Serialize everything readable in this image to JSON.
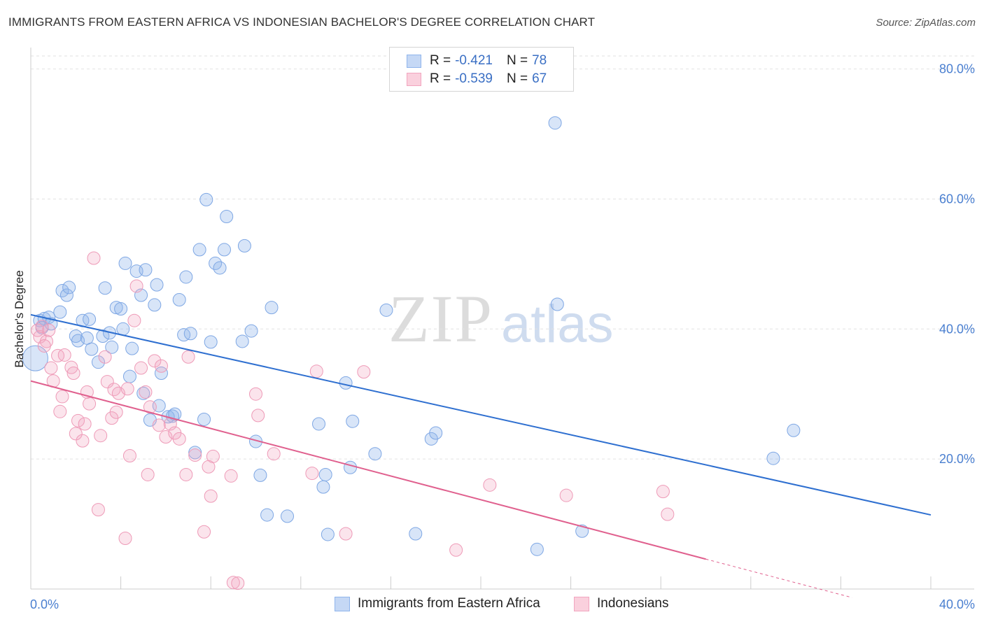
{
  "title": "IMMIGRANTS FROM EASTERN AFRICA VS INDONESIAN BACHELOR'S DEGREE CORRELATION CHART",
  "source": "Source: ZipAtlas.com",
  "watermark": {
    "zip": "ZIP",
    "atlas": "atlas"
  },
  "colors": {
    "blue": "#8fb5ec",
    "blue_line": "#2e6fd0",
    "pink": "#f2a5bf",
    "pink_line": "#e0608e",
    "tick": "#4a7fd0"
  },
  "legend": {
    "rows": [
      {
        "r_label": "R =",
        "r_value": "-0.421",
        "n_label": "N =",
        "n_value": "78"
      },
      {
        "r_label": "R =",
        "r_value": "-0.539",
        "n_label": "N =",
        "n_value": "67"
      }
    ]
  },
  "bottom_legend": [
    "Immigrants from Eastern Africa",
    "Indonesians"
  ],
  "chart_data": {
    "type": "scatter",
    "title": "IMMIGRANTS FROM EASTERN AFRICA VS INDONESIAN BACHELOR'S DEGREE CORRELATION CHART",
    "xlabel": "",
    "ylabel": "Bachelor's Degree",
    "xlim": [
      0,
      40
    ],
    "ylim": [
      0,
      82
    ],
    "x_tick_labels": [
      "0.0%",
      "40.0%"
    ],
    "y_ticks": [
      20,
      40,
      60,
      80
    ],
    "y_tick_labels": [
      "20.0%",
      "40.0%",
      "60.0%",
      "80.0%"
    ],
    "grid": true,
    "legend_position": "top-center",
    "series": [
      {
        "name": "Immigrants from Eastern Africa",
        "color": "#8fb5ec",
        "trend": {
          "x": [
            0,
            40
          ],
          "y": [
            42.2,
            11.4
          ]
        },
        "points": [
          [
            0.2,
            35.5
          ],
          [
            0.4,
            41.3
          ],
          [
            0.6,
            41.6
          ],
          [
            0.8,
            41.8
          ],
          [
            0.9,
            40.8
          ],
          [
            1.3,
            42.6
          ],
          [
            1.4,
            45.9
          ],
          [
            1.6,
            45.2
          ],
          [
            1.7,
            46.4
          ],
          [
            2.0,
            38.9
          ],
          [
            2.1,
            38.2
          ],
          [
            2.3,
            41.3
          ],
          [
            2.5,
            38.6
          ],
          [
            2.6,
            41.5
          ],
          [
            2.7,
            36.9
          ],
          [
            3.0,
            34.9
          ],
          [
            3.2,
            38.9
          ],
          [
            3.3,
            46.3
          ],
          [
            3.5,
            39.4
          ],
          [
            3.6,
            37.2
          ],
          [
            3.8,
            43.3
          ],
          [
            4.0,
            43.1
          ],
          [
            4.1,
            40.0
          ],
          [
            4.2,
            50.1
          ],
          [
            4.4,
            32.7
          ],
          [
            4.5,
            37.0
          ],
          [
            4.7,
            48.9
          ],
          [
            4.9,
            45.2
          ],
          [
            5.0,
            30.1
          ],
          [
            5.1,
            49.1
          ],
          [
            5.3,
            26.0
          ],
          [
            5.5,
            43.7
          ],
          [
            5.6,
            46.8
          ],
          [
            5.7,
            28.2
          ],
          [
            5.8,
            33.2
          ],
          [
            6.1,
            26.5
          ],
          [
            6.3,
            26.6
          ],
          [
            6.4,
            26.9
          ],
          [
            6.6,
            44.5
          ],
          [
            6.8,
            39.1
          ],
          [
            6.9,
            48.0
          ],
          [
            7.1,
            39.3
          ],
          [
            7.3,
            21.0
          ],
          [
            7.5,
            52.2
          ],
          [
            7.7,
            26.1
          ],
          [
            7.8,
            59.9
          ],
          [
            8.0,
            38.0
          ],
          [
            8.2,
            50.1
          ],
          [
            8.4,
            49.4
          ],
          [
            8.6,
            52.2
          ],
          [
            8.7,
            57.3
          ],
          [
            9.4,
            38.1
          ],
          [
            9.5,
            52.8
          ],
          [
            9.8,
            39.7
          ],
          [
            10.0,
            22.7
          ],
          [
            10.2,
            17.5
          ],
          [
            10.5,
            11.4
          ],
          [
            10.7,
            43.3
          ],
          [
            11.4,
            11.2
          ],
          [
            12.8,
            25.4
          ],
          [
            13.0,
            15.7
          ],
          [
            13.1,
            17.6
          ],
          [
            13.2,
            8.4
          ],
          [
            14.0,
            31.7
          ],
          [
            14.2,
            18.7
          ],
          [
            14.3,
            25.8
          ],
          [
            15.3,
            20.8
          ],
          [
            15.8,
            42.9
          ],
          [
            17.1,
            8.5
          ],
          [
            17.8,
            23.1
          ],
          [
            18.0,
            24.0
          ],
          [
            22.5,
            6.1
          ],
          [
            23.3,
            71.7
          ],
          [
            23.4,
            43.8
          ],
          [
            24.5,
            8.9
          ],
          [
            33.0,
            20.1
          ],
          [
            33.9,
            24.4
          ],
          [
            0.5,
            40.2
          ]
        ]
      },
      {
        "name": "Indonesians",
        "color": "#f2a5bf",
        "trend": {
          "x": [
            0,
            30
          ],
          "y": [
            32.0,
            4.6
          ]
        },
        "trend_dashed": {
          "x": [
            30,
            40
          ],
          "y": [
            4.6,
            -4.5
          ]
        },
        "points": [
          [
            0.3,
            39.8
          ],
          [
            0.4,
            38.8
          ],
          [
            0.5,
            40.4
          ],
          [
            0.7,
            38.1
          ],
          [
            0.8,
            39.8
          ],
          [
            0.9,
            34.0
          ],
          [
            1.0,
            32.0
          ],
          [
            1.2,
            35.9
          ],
          [
            1.3,
            27.3
          ],
          [
            1.4,
            29.6
          ],
          [
            1.5,
            36.0
          ],
          [
            1.8,
            34.1
          ],
          [
            1.9,
            33.2
          ],
          [
            2.0,
            23.9
          ],
          [
            2.1,
            25.9
          ],
          [
            2.3,
            22.8
          ],
          [
            2.4,
            25.4
          ],
          [
            2.5,
            30.3
          ],
          [
            2.6,
            28.5
          ],
          [
            2.8,
            50.9
          ],
          [
            3.0,
            12.2
          ],
          [
            3.1,
            23.6
          ],
          [
            3.3,
            35.7
          ],
          [
            3.4,
            31.9
          ],
          [
            3.6,
            26.3
          ],
          [
            3.7,
            30.7
          ],
          [
            3.8,
            27.2
          ],
          [
            3.9,
            30.1
          ],
          [
            4.2,
            7.8
          ],
          [
            4.3,
            30.8
          ],
          [
            4.4,
            20.5
          ],
          [
            4.6,
            41.3
          ],
          [
            4.7,
            46.6
          ],
          [
            4.9,
            34.0
          ],
          [
            5.1,
            30.3
          ],
          [
            5.2,
            17.6
          ],
          [
            5.3,
            28.0
          ],
          [
            5.5,
            35.1
          ],
          [
            5.7,
            25.2
          ],
          [
            5.8,
            34.3
          ],
          [
            6.0,
            23.4
          ],
          [
            6.2,
            25.4
          ],
          [
            6.4,
            24.0
          ],
          [
            6.6,
            23.1
          ],
          [
            6.9,
            17.6
          ],
          [
            7.0,
            35.7
          ],
          [
            7.3,
            20.6
          ],
          [
            7.7,
            8.8
          ],
          [
            7.9,
            18.8
          ],
          [
            8.0,
            14.3
          ],
          [
            8.1,
            20.4
          ],
          [
            8.9,
            17.4
          ],
          [
            9.0,
            1.0
          ],
          [
            9.2,
            0.9
          ],
          [
            10.0,
            30.0
          ],
          [
            10.1,
            26.7
          ],
          [
            10.8,
            20.8
          ],
          [
            12.5,
            17.8
          ],
          [
            12.7,
            33.5
          ],
          [
            14.0,
            8.5
          ],
          [
            14.8,
            33.4
          ],
          [
            18.9,
            6.0
          ],
          [
            20.4,
            16.0
          ],
          [
            23.8,
            14.4
          ],
          [
            28.1,
            15.0
          ],
          [
            28.3,
            11.5
          ],
          [
            0.6,
            37.4
          ]
        ]
      }
    ]
  }
}
